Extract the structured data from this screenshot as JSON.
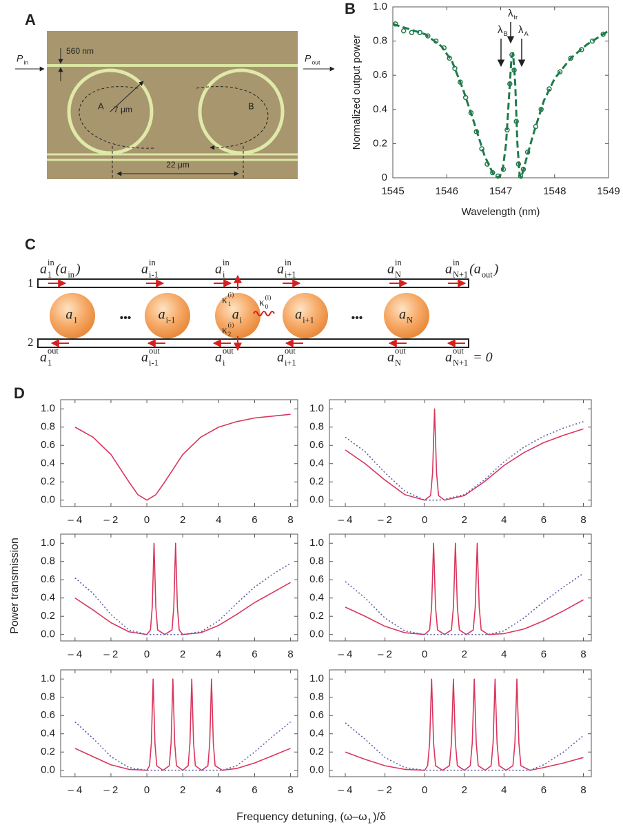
{
  "panel_a": {
    "label": "A",
    "gap": "560 nm",
    "input": [
      {
        "text": "P",
        "sub": "in"
      }
    ],
    "output": [
      {
        "text": "P",
        "sub": "out"
      }
    ],
    "radius": "7 μm",
    "rings": [
      "A",
      "B"
    ],
    "spacing": "22 μm"
  },
  "panel_c": {
    "label": "C",
    "waveguides": [
      "1",
      "2"
    ],
    "inputs": [
      [
        {
          "text": "a",
          "sub": "1",
          "sup": "in"
        },
        {
          "text": "(a",
          "sub": "in"
        },
        {
          "text": ")"
        }
      ],
      [
        {
          "text": "a",
          "sub": "i-1",
          "sup": "in"
        }
      ],
      [
        {
          "text": "a",
          "sub": "i",
          "sup": "in"
        }
      ],
      [
        {
          "text": "a",
          "sub": "i+1",
          "sup": "in"
        }
      ],
      [
        {
          "text": "a",
          "sub": "N",
          "sup": "in"
        }
      ],
      [
        {
          "text": "a",
          "sub": "N+1",
          "sup": "in"
        },
        {
          "text": "(a",
          "sub": "out"
        },
        {
          "text": ")"
        }
      ]
    ],
    "resonators": [
      [
        {
          "text": "a",
          "sub": "1"
        }
      ],
      [
        {
          "text": "a",
          "sub": "i-1"
        }
      ],
      [
        {
          "text": "a",
          "sub": "i"
        }
      ],
      [
        {
          "text": "a",
          "sub": "i+1"
        }
      ],
      [
        {
          "text": "a",
          "sub": "N"
        }
      ]
    ],
    "ellipses": [
      "•••",
      "•••"
    ],
    "couplings": [
      [
        {
          "text": "κ",
          "sub": "1",
          "sup": "(i)"
        }
      ],
      [
        {
          "text": "κ",
          "sub": "2",
          "sup": "(i)"
        }
      ],
      [
        {
          "text": "κ",
          "sub": "0",
          "sup": "(i)"
        }
      ]
    ],
    "outputs": [
      [
        {
          "text": "a",
          "sub": "1",
          "sup": "out"
        }
      ],
      [
        {
          "text": "a",
          "sub": "i-1",
          "sup": "out"
        }
      ],
      [
        {
          "text": "a",
          "sub": "i",
          "sup": "out"
        }
      ],
      [
        {
          "text": "a",
          "sub": "i+1",
          "sup": "out"
        }
      ],
      [
        {
          "text": "a",
          "sub": "N",
          "sup": "out"
        }
      ],
      [
        {
          "text": "a",
          "sub": "N+1",
          "sup": "out"
        },
        {
          "text": " = 0"
        }
      ]
    ]
  },
  "panel_d": {
    "label": "D",
    "y_label": "Power transmission",
    "x_label": [
      {
        "text": "Frequency detuning, (ω–ω",
        "sub": "1"
      },
      {
        "text": ")/δ"
      }
    ]
  },
  "chart_data": [
    {
      "type": "scatter",
      "panel_label": "B",
      "x_label": "Wavelength (nm)",
      "y_label": "Normalized output power",
      "xlim": [
        1545,
        1549
      ],
      "ylim": [
        0,
        1
      ],
      "xticks": [
        1545,
        1546,
        1547,
        1548,
        1549
      ],
      "yticks": [
        0,
        0.2,
        0.4,
        0.6,
        0.8,
        {
          "value": 1,
          "label": "1.0"
        }
      ],
      "annotations": [
        [
          {
            "text": "λ",
            "sub": "B"
          }
        ],
        [
          {
            "text": "λ",
            "sub": "tr"
          }
        ],
        [
          {
            "text": "λ",
            "sub": "A"
          }
        ]
      ],
      "series": [
        {
          "color": "#1f7a4a",
          "marker": "circle",
          "x": [
            1545.05,
            1545.2,
            1545.35,
            1545.5,
            1545.65,
            1545.8,
            1545.95,
            1546.05,
            1546.15,
            1546.25,
            1546.35,
            1546.45,
            1546.55,
            1546.65,
            1546.75,
            1546.85,
            1546.95,
            1547.05,
            1547.12,
            1547.17,
            1547.21,
            1547.25,
            1547.29,
            1547.33,
            1547.37,
            1547.42,
            1547.5,
            1547.65,
            1547.75,
            1547.9,
            1548.1,
            1548.3,
            1548.5,
            1548.7,
            1548.9
          ],
          "values": [
            0.9,
            0.86,
            0.85,
            0.85,
            0.83,
            0.8,
            0.76,
            0.7,
            0.64,
            0.56,
            0.47,
            0.38,
            0.27,
            0.17,
            0.08,
            0.03,
            0.01,
            0.05,
            0.28,
            0.55,
            0.72,
            0.63,
            0.33,
            0.08,
            0.01,
            0.05,
            0.15,
            0.3,
            0.4,
            0.52,
            0.62,
            0.7,
            0.75,
            0.8,
            0.84
          ]
        },
        {
          "color": "#1f7a4a",
          "style": "dashed",
          "x": [
            1545,
            1545.3,
            1545.6,
            1545.9,
            1546.1,
            1546.3,
            1546.5,
            1546.7,
            1546.85,
            1546.95,
            1547.03,
            1547.1,
            1547.15,
            1547.2,
            1547.23,
            1547.27,
            1547.31,
            1547.35,
            1547.38,
            1547.45,
            1547.6,
            1547.8,
            1548,
            1548.3,
            1548.6,
            1549
          ],
          "values": [
            0.9,
            0.87,
            0.84,
            0.77,
            0.68,
            0.52,
            0.33,
            0.13,
            0.03,
            0,
            0.03,
            0.2,
            0.45,
            0.7,
            0.73,
            0.55,
            0.2,
            0.02,
            0,
            0.08,
            0.25,
            0.45,
            0.58,
            0.7,
            0.78,
            0.86
          ]
        }
      ]
    },
    {
      "type": "line",
      "xlim": [
        -4.8,
        8.4
      ],
      "ylim": [
        -0.07,
        1.1
      ],
      "xticks": [
        {
          "value": -4,
          "label": "– 4"
        },
        {
          "value": -2,
          "label": "– 2"
        },
        0,
        2,
        4,
        6,
        8
      ],
      "yticks": [
        {
          "value": 0,
          "label": "0.0"
        },
        0.2,
        0.4,
        0.6,
        0.8,
        {
          "value": 1,
          "label": "1.0"
        }
      ],
      "x": [
        -4,
        -3,
        -2,
        -1,
        -0.5,
        0,
        0.5,
        1,
        2,
        3,
        4,
        5,
        6,
        7,
        8
      ],
      "series": [
        {
          "color": "#d9365c",
          "style": "solid",
          "values": [
            0.8,
            0.69,
            0.5,
            0.2,
            0.06,
            0,
            0.06,
            0.2,
            0.5,
            0.69,
            0.8,
            0.86,
            0.9,
            0.92,
            0.94
          ]
        }
      ]
    },
    {
      "type": "line",
      "xlim": [
        -4.8,
        8.4
      ],
      "ylim": [
        -0.07,
        1.1
      ],
      "xticks": [
        {
          "value": -4,
          "label": "– 4"
        },
        {
          "value": -2,
          "label": "– 2"
        },
        0,
        2,
        4,
        6,
        8
      ],
      "yticks": [
        {
          "value": 0,
          "label": "0.0"
        },
        0.2,
        0.4,
        0.6,
        0.8,
        {
          "value": 1,
          "label": "1.0"
        }
      ],
      "x": [
        -4,
        -3,
        -2,
        -1,
        0,
        0.3,
        0.4,
        0.5,
        0.6,
        0.7,
        1,
        2,
        3,
        4,
        5,
        6,
        7,
        8
      ],
      "series": [
        {
          "color": "#d9365c",
          "style": "solid",
          "values": [
            0.55,
            0.4,
            0.22,
            0.06,
            0,
            0.05,
            0.3,
            1,
            0.3,
            0.05,
            0,
            0.05,
            0.2,
            0.38,
            0.52,
            0.63,
            0.71,
            0.78
          ]
        },
        {
          "color": "#5b5fa8",
          "style": "dotted",
          "values": [
            0.69,
            0.53,
            0.3,
            0.1,
            0,
            0,
            0,
            0,
            0,
            0,
            0.01,
            0.06,
            0.22,
            0.42,
            0.58,
            0.7,
            0.79,
            0.86
          ]
        }
      ]
    },
    {
      "type": "line",
      "xlim": [
        -4.8,
        8.4
      ],
      "ylim": [
        -0.07,
        1.1
      ],
      "xticks": [
        {
          "value": -4,
          "label": "– 4"
        },
        {
          "value": -2,
          "label": "– 2"
        },
        0,
        2,
        4,
        6,
        8
      ],
      "yticks": [
        {
          "value": 0,
          "label": "0.0"
        },
        0.2,
        0.4,
        0.6,
        0.8,
        {
          "value": 1,
          "label": "1.0"
        }
      ],
      "x": [
        -4,
        -3,
        -2,
        -1,
        0,
        0.2,
        0.3,
        0.4,
        0.5,
        0.6,
        1,
        1.4,
        1.5,
        1.6,
        1.7,
        1.8,
        2,
        3,
        4,
        5,
        6,
        7,
        8
      ],
      "series": [
        {
          "color": "#d9365c",
          "style": "solid",
          "values": [
            0.4,
            0.27,
            0.13,
            0.03,
            0,
            0.05,
            0.3,
            1,
            0.3,
            0.05,
            0,
            0.05,
            0.3,
            1,
            0.3,
            0.05,
            0,
            0.02,
            0.1,
            0.22,
            0.35,
            0.46,
            0.57
          ]
        },
        {
          "color": "#5b5fa8",
          "style": "dotted",
          "values": [
            0.62,
            0.45,
            0.22,
            0.05,
            0,
            0,
            0,
            0,
            0,
            0,
            0,
            0,
            0,
            0,
            0,
            0,
            0,
            0.03,
            0.15,
            0.34,
            0.52,
            0.66,
            0.78
          ]
        }
      ]
    },
    {
      "type": "line",
      "xlim": [
        -4.8,
        8.4
      ],
      "ylim": [
        -0.07,
        1.1
      ],
      "xticks": [
        {
          "value": -4,
          "label": "– 4"
        },
        {
          "value": -2,
          "label": "– 2"
        },
        0,
        2,
        4,
        6,
        8
      ],
      "yticks": [
        {
          "value": 0,
          "label": "0.0"
        },
        0.2,
        0.4,
        0.6,
        0.8,
        {
          "value": 1,
          "label": "1.0"
        }
      ],
      "x": [
        -4,
        -3,
        -2,
        -1,
        0,
        0.25,
        0.35,
        0.45,
        0.55,
        0.65,
        1,
        1.35,
        1.45,
        1.55,
        1.65,
        1.75,
        2.1,
        2.45,
        2.55,
        2.65,
        2.75,
        2.85,
        3.2,
        4,
        5,
        6,
        7,
        8
      ],
      "series": [
        {
          "color": "#d9365c",
          "style": "solid",
          "values": [
            0.3,
            0.2,
            0.09,
            0.02,
            0,
            0.05,
            0.3,
            1,
            0.3,
            0.05,
            0,
            0.05,
            0.3,
            1,
            0.3,
            0.05,
            0,
            0.05,
            0.3,
            1,
            0.3,
            0.05,
            0,
            0.01,
            0.06,
            0.15,
            0.26,
            0.38
          ]
        },
        {
          "color": "#5b5fa8",
          "style": "dotted",
          "values": [
            0.58,
            0.4,
            0.18,
            0.04,
            0,
            0,
            0,
            0,
            0,
            0,
            0,
            0,
            0,
            0,
            0,
            0,
            0,
            0,
            0,
            0,
            0,
            0,
            0,
            0.04,
            0.18,
            0.36,
            0.52,
            0.67
          ]
        }
      ]
    },
    {
      "type": "line",
      "xlim": [
        -4.8,
        8.4
      ],
      "ylim": [
        -0.07,
        1.1
      ],
      "xticks": [
        {
          "value": -4,
          "label": "– 4"
        },
        {
          "value": -2,
          "label": "– 2"
        },
        0,
        2,
        4,
        6,
        8
      ],
      "yticks": [
        {
          "value": 0,
          "label": "0.0"
        },
        0.2,
        0.4,
        0.6,
        0.8,
        {
          "value": 1,
          "label": "1.0"
        }
      ],
      "x": [
        -4,
        -3,
        -2,
        -1,
        0,
        0.15,
        0.25,
        0.35,
        0.45,
        0.55,
        0.9,
        1.25,
        1.35,
        1.45,
        1.55,
        1.65,
        2,
        2.3,
        2.4,
        2.5,
        2.6,
        2.7,
        3.05,
        3.4,
        3.5,
        3.6,
        3.7,
        3.8,
        4.2,
        5,
        6,
        7,
        8
      ],
      "series": [
        {
          "color": "#d9365c",
          "style": "solid",
          "values": [
            0.24,
            0.15,
            0.06,
            0.01,
            0,
            0.05,
            0.3,
            1,
            0.3,
            0.05,
            0,
            0.05,
            0.3,
            1,
            0.3,
            0.05,
            0,
            0.05,
            0.3,
            1,
            0.3,
            0.05,
            0,
            0.05,
            0.3,
            1,
            0.3,
            0.05,
            0,
            0.02,
            0.08,
            0.16,
            0.24
          ]
        },
        {
          "color": "#5b5fa8",
          "style": "dotted",
          "values": [
            0.53,
            0.35,
            0.15,
            0.03,
            0,
            0,
            0,
            0,
            0,
            0,
            0,
            0,
            0,
            0,
            0,
            0,
            0,
            0,
            0,
            0,
            0,
            0,
            0,
            0,
            0,
            0,
            0,
            0,
            0,
            0.05,
            0.2,
            0.37,
            0.53
          ]
        }
      ]
    },
    {
      "type": "line",
      "xlim": [
        -4.8,
        8.4
      ],
      "ylim": [
        -0.07,
        1.1
      ],
      "xticks": [
        {
          "value": -4,
          "label": "– 4"
        },
        {
          "value": -2,
          "label": "– 2"
        },
        0,
        2,
        4,
        6,
        8
      ],
      "yticks": [
        {
          "value": 0,
          "label": "0.0"
        },
        0.2,
        0.4,
        0.6,
        0.8,
        {
          "value": 1,
          "label": "1.0"
        }
      ],
      "x": [
        -4,
        -3,
        -2,
        -1,
        0,
        0.15,
        0.25,
        0.35,
        0.45,
        0.55,
        0.9,
        1.25,
        1.35,
        1.45,
        1.55,
        1.65,
        2,
        2.3,
        2.4,
        2.5,
        2.6,
        2.7,
        3.05,
        3.35,
        3.45,
        3.55,
        3.65,
        3.75,
        4.1,
        4.45,
        4.55,
        4.65,
        4.75,
        4.85,
        5.3,
        6,
        7,
        8
      ],
      "series": [
        {
          "color": "#d9365c",
          "style": "solid",
          "values": [
            0.2,
            0.12,
            0.05,
            0.01,
            0,
            0.05,
            0.3,
            1,
            0.3,
            0.05,
            0,
            0.05,
            0.3,
            1,
            0.3,
            0.05,
            0,
            0.05,
            0.3,
            1,
            0.3,
            0.05,
            0,
            0.05,
            0.3,
            1,
            0.3,
            0.05,
            0,
            0.05,
            0.3,
            1,
            0.3,
            0.05,
            0,
            0.03,
            0.08,
            0.14
          ]
        },
        {
          "color": "#5b5fa8",
          "style": "dotted",
          "values": [
            0.52,
            0.34,
            0.14,
            0.03,
            0,
            0,
            0,
            0,
            0,
            0,
            0,
            0,
            0,
            0,
            0,
            0,
            0,
            0,
            0,
            0,
            0,
            0,
            0,
            0,
            0,
            0,
            0,
            0,
            0,
            0,
            0,
            0,
            0,
            0,
            0,
            0.06,
            0.2,
            0.38
          ]
        }
      ]
    }
  ]
}
